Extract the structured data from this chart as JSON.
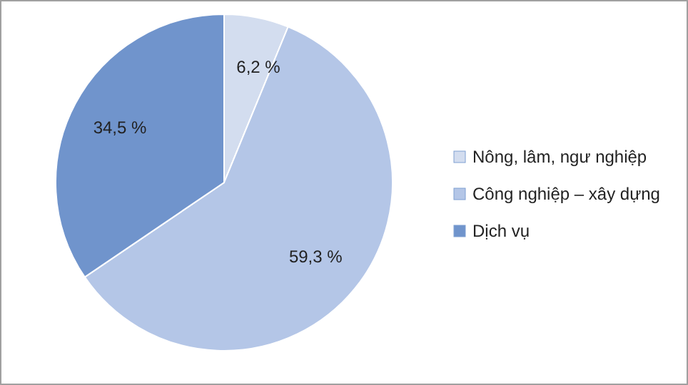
{
  "chart_data": {
    "type": "pie",
    "categories": [
      "Nông, lâm, ngư nghiệp",
      "Công nghiệp – xây dựng",
      "Dịch vụ"
    ],
    "values": [
      6.2,
      59.3,
      34.5
    ],
    "value_labels": [
      "6,2 %",
      "59,3 %",
      "34,5 %"
    ],
    "colors": [
      "#d3ddef",
      "#b4c6e7",
      "#7094cc"
    ],
    "legend": "right"
  }
}
